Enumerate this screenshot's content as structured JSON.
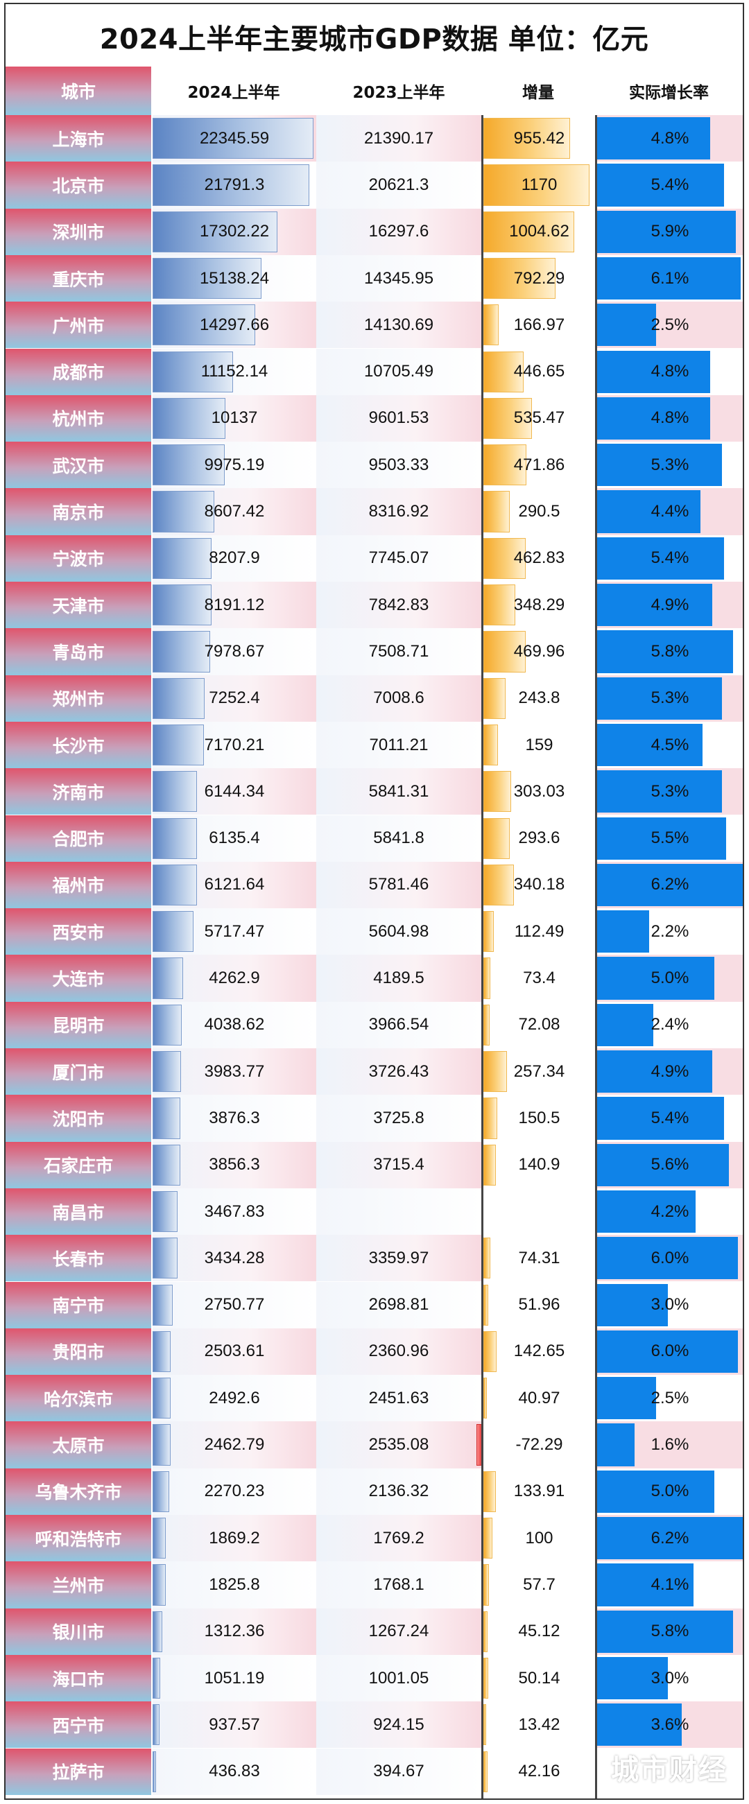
{
  "title": "2024上半年主要城市GDP数据    单位：亿元",
  "watermark": "城市财经",
  "colors": {
    "city_header": "#e0556c",
    "bar_2024": "#5b84c4",
    "bar_increment": "#f5a92a",
    "bar_negative": "#d92a2a",
    "bar_growth": "#0f83e8"
  },
  "chart_data": {
    "type": "table",
    "columns": [
      "城市",
      "2024上半年",
      "2023上半年",
      "增量",
      "实际增长率"
    ],
    "rows": [
      {
        "city": "上海市",
        "gdp2024": "22345.59",
        "gdp2023": "21390.17",
        "increment": "955.42",
        "growth": "4.8%"
      },
      {
        "city": "北京市",
        "gdp2024": "21791.3",
        "gdp2023": "20621.3",
        "increment": "1170",
        "growth": "5.4%"
      },
      {
        "city": "深圳市",
        "gdp2024": "17302.22",
        "gdp2023": "16297.6",
        "increment": "1004.62",
        "growth": "5.9%"
      },
      {
        "city": "重庆市",
        "gdp2024": "15138.24",
        "gdp2023": "14345.95",
        "increment": "792.29",
        "growth": "6.1%"
      },
      {
        "city": "广州市",
        "gdp2024": "14297.66",
        "gdp2023": "14130.69",
        "increment": "166.97",
        "growth": "2.5%"
      },
      {
        "city": "成都市",
        "gdp2024": "11152.14",
        "gdp2023": "10705.49",
        "increment": "446.65",
        "growth": "4.8%"
      },
      {
        "city": "杭州市",
        "gdp2024": "10137",
        "gdp2023": "9601.53",
        "increment": "535.47",
        "growth": "4.8%"
      },
      {
        "city": "武汉市",
        "gdp2024": "9975.19",
        "gdp2023": "9503.33",
        "increment": "471.86",
        "growth": "5.3%"
      },
      {
        "city": "南京市",
        "gdp2024": "8607.42",
        "gdp2023": "8316.92",
        "increment": "290.5",
        "growth": "4.4%"
      },
      {
        "city": "宁波市",
        "gdp2024": "8207.9",
        "gdp2023": "7745.07",
        "increment": "462.83",
        "growth": "5.4%"
      },
      {
        "city": "天津市",
        "gdp2024": "8191.12",
        "gdp2023": "7842.83",
        "increment": "348.29",
        "growth": "4.9%"
      },
      {
        "city": "青岛市",
        "gdp2024": "7978.67",
        "gdp2023": "7508.71",
        "increment": "469.96",
        "growth": "5.8%"
      },
      {
        "city": "郑州市",
        "gdp2024": "7252.4",
        "gdp2023": "7008.6",
        "increment": "243.8",
        "growth": "5.3%"
      },
      {
        "city": "长沙市",
        "gdp2024": "7170.21",
        "gdp2023": "7011.21",
        "increment": "159",
        "growth": "4.5%"
      },
      {
        "city": "济南市",
        "gdp2024": "6144.34",
        "gdp2023": "5841.31",
        "increment": "303.03",
        "growth": "5.3%"
      },
      {
        "city": "合肥市",
        "gdp2024": "6135.4",
        "gdp2023": "5841.8",
        "increment": "293.6",
        "growth": "5.5%"
      },
      {
        "city": "福州市",
        "gdp2024": "6121.64",
        "gdp2023": "5781.46",
        "increment": "340.18",
        "growth": "6.2%"
      },
      {
        "city": "西安市",
        "gdp2024": "5717.47",
        "gdp2023": "5604.98",
        "increment": "112.49",
        "growth": "2.2%"
      },
      {
        "city": "大连市",
        "gdp2024": "4262.9",
        "gdp2023": "4189.5",
        "increment": "73.4",
        "growth": "5.0%"
      },
      {
        "city": "昆明市",
        "gdp2024": "4038.62",
        "gdp2023": "3966.54",
        "increment": "72.08",
        "growth": "2.4%"
      },
      {
        "city": "厦门市",
        "gdp2024": "3983.77",
        "gdp2023": "3726.43",
        "increment": "257.34",
        "growth": "4.9%"
      },
      {
        "city": "沈阳市",
        "gdp2024": "3876.3",
        "gdp2023": "3725.8",
        "increment": "150.5",
        "growth": "5.4%"
      },
      {
        "city": "石家庄市",
        "gdp2024": "3856.3",
        "gdp2023": "3715.4",
        "increment": "140.9",
        "growth": "5.6%"
      },
      {
        "city": "南昌市",
        "gdp2024": "3467.83",
        "gdp2023": "",
        "increment": "",
        "growth": "4.2%"
      },
      {
        "city": "长春市",
        "gdp2024": "3434.28",
        "gdp2023": "3359.97",
        "increment": "74.31",
        "growth": "6.0%"
      },
      {
        "city": "南宁市",
        "gdp2024": "2750.77",
        "gdp2023": "2698.81",
        "increment": "51.96",
        "growth": "3.0%"
      },
      {
        "city": "贵阳市",
        "gdp2024": "2503.61",
        "gdp2023": "2360.96",
        "increment": "142.65",
        "growth": "6.0%"
      },
      {
        "city": "哈尔滨市",
        "gdp2024": "2492.6",
        "gdp2023": "2451.63",
        "increment": "40.97",
        "growth": "2.5%"
      },
      {
        "city": "太原市",
        "gdp2024": "2462.79",
        "gdp2023": "2535.08",
        "increment": "-72.29",
        "growth": "1.6%"
      },
      {
        "city": "乌鲁木齐市",
        "gdp2024": "2270.23",
        "gdp2023": "2136.32",
        "increment": "133.91",
        "growth": "5.0%"
      },
      {
        "city": "呼和浩特市",
        "gdp2024": "1869.2",
        "gdp2023": "1769.2",
        "increment": "100",
        "growth": "6.2%"
      },
      {
        "city": "兰州市",
        "gdp2024": "1825.8",
        "gdp2023": "1768.1",
        "increment": "57.7",
        "growth": "4.1%"
      },
      {
        "city": "银川市",
        "gdp2024": "1312.36",
        "gdp2023": "1267.24",
        "increment": "45.12",
        "growth": "5.8%"
      },
      {
        "city": "海口市",
        "gdp2024": "1051.19",
        "gdp2023": "1001.05",
        "increment": "50.14",
        "growth": "3.0%"
      },
      {
        "city": "西宁市",
        "gdp2024": "937.57",
        "gdp2023": "924.15",
        "increment": "13.42",
        "growth": "3.6%"
      },
      {
        "city": "拉萨市",
        "gdp2024": "436.83",
        "gdp2023": "394.67",
        "increment": "42.16",
        "growth": ""
      }
    ]
  }
}
